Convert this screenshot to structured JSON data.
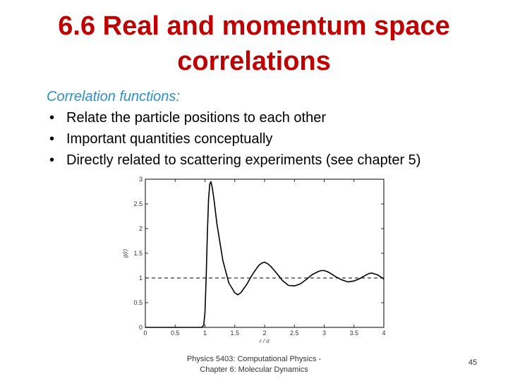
{
  "slide": {
    "title_line1": "6.6 Real and momentum space",
    "title_line2": "correlations",
    "subheading": "Correlation functions:",
    "bullets": [
      "Relate the particle positions to each other",
      "Important quantities conceptually",
      "Directly related to scattering experiments (see chapter 5)"
    ],
    "footer_line1": "Physics 5403: Computational Physics -",
    "footer_line2": "Chapter 6: Molecular Dynamics",
    "page_number": "45"
  },
  "colors": {
    "title": "#c00000",
    "subheading": "#2e8fc4"
  },
  "chart_data": {
    "type": "line",
    "xlabel": "r / σ",
    "ylabel": "g(r)",
    "xlim": [
      0,
      4
    ],
    "ylim": [
      0,
      3
    ],
    "x_ticks": [
      "0",
      "0.5",
      "1",
      "1.5",
      "2",
      "2.5",
      "3",
      "3.5",
      "4"
    ],
    "y_ticks": [
      "0",
      "0.5",
      "1",
      "1.5",
      "2",
      "2.5",
      "3"
    ],
    "reference_line": {
      "y": 1,
      "style": "dashed"
    },
    "series": [
      {
        "x": [
          0,
          0.8,
          0.95,
          0.98,
          1.0,
          1.02,
          1.04,
          1.06,
          1.08,
          1.1,
          1.12,
          1.15,
          1.2,
          1.3,
          1.4,
          1.5,
          1.55,
          1.6,
          1.7,
          1.8,
          1.9,
          1.95,
          2.0,
          2.05,
          2.1,
          2.2,
          2.3,
          2.4,
          2.5,
          2.6,
          2.7,
          2.8,
          2.9,
          2.95,
          3.0,
          3.05,
          3.1,
          3.2,
          3.3,
          3.4,
          3.5,
          3.6,
          3.7,
          3.75,
          3.8,
          3.9,
          4.0
        ],
        "y": [
          0,
          0,
          0,
          0.05,
          0.3,
          1.0,
          1.9,
          2.6,
          2.9,
          2.95,
          2.85,
          2.6,
          2.1,
          1.35,
          0.9,
          0.7,
          0.66,
          0.7,
          0.87,
          1.08,
          1.25,
          1.3,
          1.32,
          1.29,
          1.24,
          1.1,
          0.95,
          0.85,
          0.84,
          0.88,
          0.97,
          1.07,
          1.13,
          1.15,
          1.15,
          1.13,
          1.1,
          1.02,
          0.96,
          0.92,
          0.94,
          0.99,
          1.06,
          1.09,
          1.1,
          1.06,
          0.98
        ]
      }
    ]
  }
}
